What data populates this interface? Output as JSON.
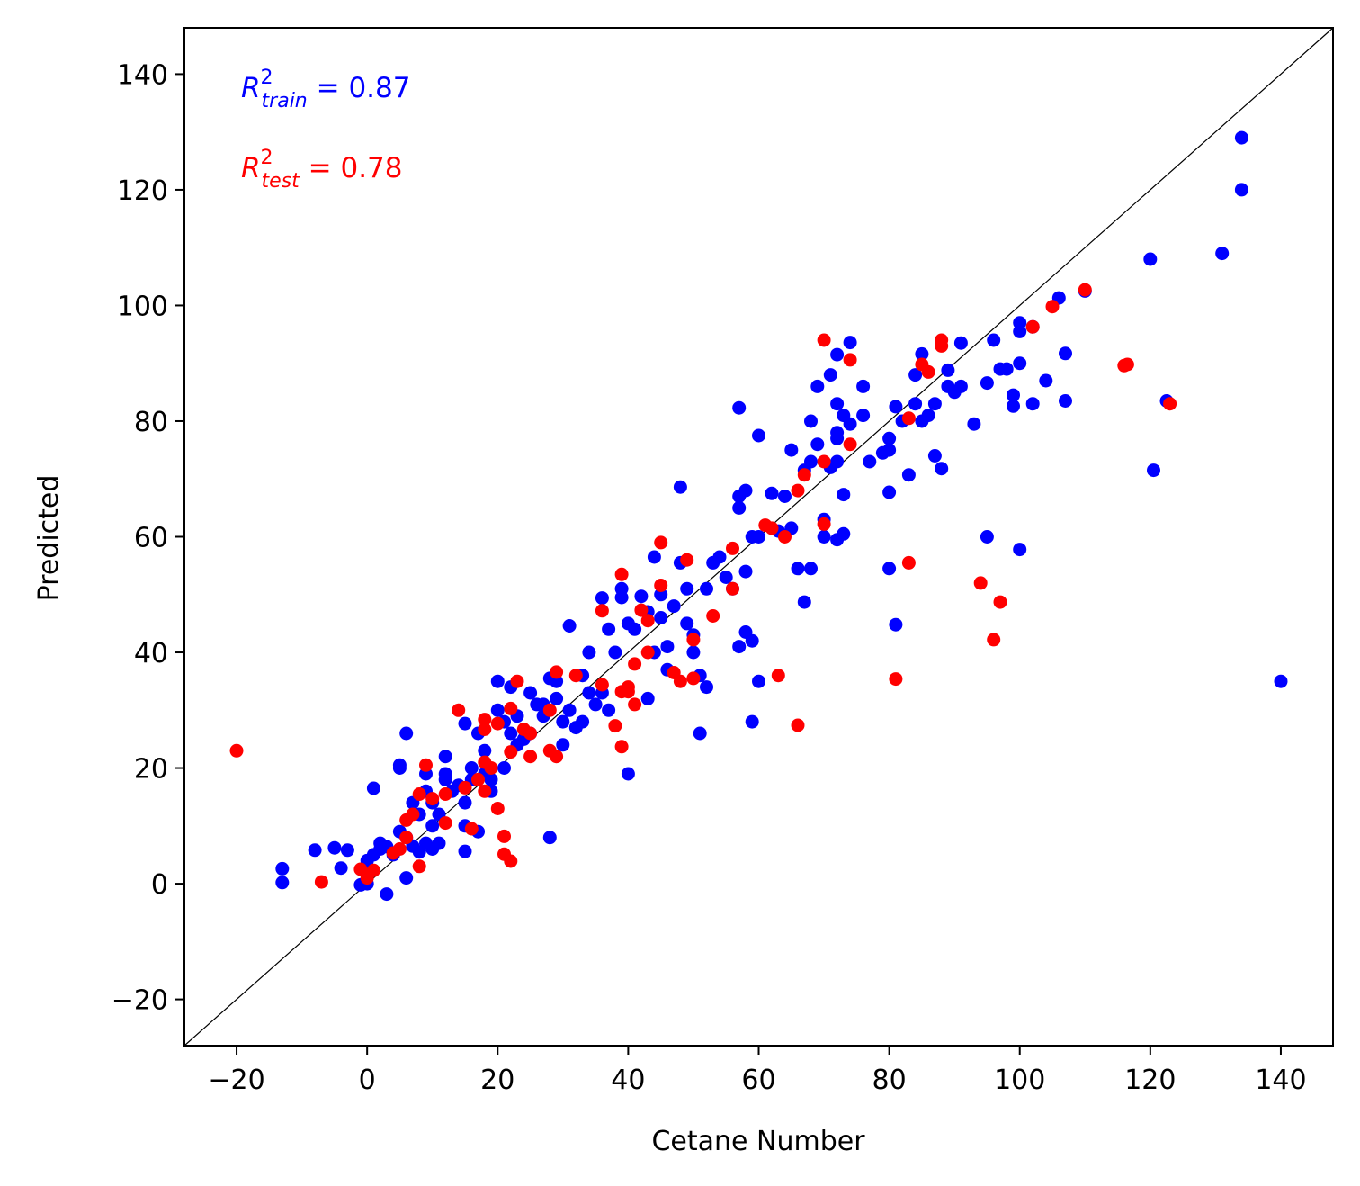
{
  "chart_data": {
    "type": "scatter",
    "title": "",
    "xlabel": "Cetane Number",
    "ylabel": "Predicted",
    "xlim": [
      -28,
      148
    ],
    "ylim": [
      -28,
      148
    ],
    "xticks": [
      -20,
      0,
      20,
      40,
      60,
      80,
      100,
      120,
      140
    ],
    "yticks": [
      -20,
      0,
      20,
      40,
      60,
      80,
      100,
      120,
      140
    ],
    "xtick_labels": [
      "−20",
      "0",
      "20",
      "40",
      "60",
      "80",
      "100",
      "120",
      "140"
    ],
    "ytick_labels": [
      "−20",
      "0",
      "20",
      "40",
      "60",
      "80",
      "100",
      "120",
      "140"
    ],
    "grid": false,
    "reference_line": {
      "type": "identity",
      "color": "#000000"
    },
    "annotations": [
      {
        "id": "train",
        "base": "R",
        "superscript": "2",
        "subscript": "train",
        "text": " = 0.87",
        "color": "#0000ff"
      },
      {
        "id": "test",
        "base": "R",
        "superscript": "2",
        "subscript": "test",
        "text": " = 0.78",
        "color": "#ff0000"
      }
    ],
    "series": [
      {
        "color": "#0000ff",
        "points": [
          [
            -13,
            0.2
          ],
          [
            -13,
            2.6
          ],
          [
            -8,
            5.8
          ],
          [
            -5,
            6.2
          ],
          [
            -4,
            2.7
          ],
          [
            -3,
            5.8
          ],
          [
            -1,
            -0.2
          ],
          [
            0,
            0
          ],
          [
            0,
            4
          ],
          [
            0,
            2
          ],
          [
            1,
            16.5
          ],
          [
            1,
            5
          ],
          [
            2,
            6
          ],
          [
            2,
            7
          ],
          [
            3,
            -1.8
          ],
          [
            3,
            6.4
          ],
          [
            4,
            5
          ],
          [
            5,
            9
          ],
          [
            5,
            20
          ],
          [
            5,
            20.5
          ],
          [
            6,
            26
          ],
          [
            6,
            1
          ],
          [
            6,
            8
          ],
          [
            7,
            14
          ],
          [
            7,
            6.5
          ],
          [
            8,
            12
          ],
          [
            8,
            5.5
          ],
          [
            9,
            19
          ],
          [
            9,
            16
          ],
          [
            9,
            7
          ],
          [
            10,
            10
          ],
          [
            10,
            6
          ],
          [
            10,
            14
          ],
          [
            11,
            7
          ],
          [
            11,
            12
          ],
          [
            12,
            22
          ],
          [
            12,
            18
          ],
          [
            12,
            19
          ],
          [
            13,
            16
          ],
          [
            14,
            17
          ],
          [
            15,
            27.7
          ],
          [
            15,
            14
          ],
          [
            15,
            10
          ],
          [
            15,
            5.6
          ],
          [
            16,
            20
          ],
          [
            16,
            18
          ],
          [
            17,
            26
          ],
          [
            17,
            9
          ],
          [
            18,
            23
          ],
          [
            18,
            19
          ],
          [
            19,
            18
          ],
          [
            19,
            16
          ],
          [
            20,
            35
          ],
          [
            20,
            30
          ],
          [
            21,
            28
          ],
          [
            21,
            20
          ],
          [
            22,
            34
          ],
          [
            22,
            26
          ],
          [
            23,
            29
          ],
          [
            23,
            24
          ],
          [
            24,
            25
          ],
          [
            25,
            33
          ],
          [
            25,
            26
          ],
          [
            26,
            31
          ],
          [
            27,
            31
          ],
          [
            27,
            29
          ],
          [
            28,
            8
          ],
          [
            28,
            35.5
          ],
          [
            29,
            32
          ],
          [
            29,
            35
          ],
          [
            30,
            24
          ],
          [
            30,
            28
          ],
          [
            31,
            44.6
          ],
          [
            31,
            30
          ],
          [
            32,
            27
          ],
          [
            33,
            28
          ],
          [
            33,
            36
          ],
          [
            34,
            40
          ],
          [
            34,
            33
          ],
          [
            35,
            31
          ],
          [
            36,
            49.4
          ],
          [
            36,
            33
          ],
          [
            37,
            30
          ],
          [
            37,
            44
          ],
          [
            38,
            40
          ],
          [
            39,
            49.5
          ],
          [
            39,
            51
          ],
          [
            40,
            45
          ],
          [
            40,
            19
          ],
          [
            41,
            44
          ],
          [
            42,
            49.7
          ],
          [
            43,
            32
          ],
          [
            43,
            47
          ],
          [
            44,
            56.5
          ],
          [
            44,
            40
          ],
          [
            45,
            50
          ],
          [
            45,
            46
          ],
          [
            46,
            41
          ],
          [
            46,
            37
          ],
          [
            47,
            48
          ],
          [
            48,
            68.6
          ],
          [
            48,
            55.5
          ],
          [
            49,
            45
          ],
          [
            49,
            51
          ],
          [
            50,
            43
          ],
          [
            50,
            40
          ],
          [
            51,
            36
          ],
          [
            51,
            26
          ],
          [
            52,
            34
          ],
          [
            52,
            51
          ],
          [
            53,
            55.5
          ],
          [
            54,
            56.5
          ],
          [
            55,
            53
          ],
          [
            56,
            51
          ],
          [
            57,
            82.3
          ],
          [
            57,
            65
          ],
          [
            57,
            67
          ],
          [
            57,
            41
          ],
          [
            58,
            68
          ],
          [
            58,
            54
          ],
          [
            58,
            43.5
          ],
          [
            59,
            60
          ],
          [
            59,
            42
          ],
          [
            59,
            28
          ],
          [
            60,
            77.5
          ],
          [
            60,
            60
          ],
          [
            60,
            35
          ],
          [
            62,
            67.5
          ],
          [
            63,
            61
          ],
          [
            64,
            67
          ],
          [
            65,
            75
          ],
          [
            65,
            61.5
          ],
          [
            66,
            54.5
          ],
          [
            67,
            71.5
          ],
          [
            67,
            48.7
          ],
          [
            68,
            80
          ],
          [
            68,
            73
          ],
          [
            68,
            54.5
          ],
          [
            69,
            76
          ],
          [
            69,
            86
          ],
          [
            70,
            63
          ],
          [
            70,
            60
          ],
          [
            71,
            88
          ],
          [
            71,
            72
          ],
          [
            72,
            91.5
          ],
          [
            72,
            83
          ],
          [
            72,
            78
          ],
          [
            72,
            77
          ],
          [
            72,
            73
          ],
          [
            72,
            59.5
          ],
          [
            73,
            67.3
          ],
          [
            73,
            60.5
          ],
          [
            73,
            81
          ],
          [
            74,
            93.6
          ],
          [
            74,
            79.5
          ],
          [
            76,
            81
          ],
          [
            76,
            86
          ],
          [
            77,
            73
          ],
          [
            79,
            74.5
          ],
          [
            80,
            75
          ],
          [
            80,
            77
          ],
          [
            80,
            67.7
          ],
          [
            80,
            54.5
          ],
          [
            81,
            82.5
          ],
          [
            81,
            44.8
          ],
          [
            82,
            80
          ],
          [
            83,
            70.7
          ],
          [
            84,
            88
          ],
          [
            84,
            83
          ],
          [
            85,
            91.6
          ],
          [
            85,
            80
          ],
          [
            86,
            81
          ],
          [
            87,
            74
          ],
          [
            87,
            83
          ],
          [
            88,
            71.8
          ],
          [
            89,
            88.8
          ],
          [
            89,
            86
          ],
          [
            90,
            85
          ],
          [
            91,
            93.5
          ],
          [
            91,
            86
          ],
          [
            93,
            79.5
          ],
          [
            95,
            86.6
          ],
          [
            95,
            60
          ],
          [
            96,
            94
          ],
          [
            97,
            89
          ],
          [
            98,
            89
          ],
          [
            99,
            84.5
          ],
          [
            99,
            82.6
          ],
          [
            100,
            95.5
          ],
          [
            100,
            97
          ],
          [
            100,
            90
          ],
          [
            100,
            57.8
          ],
          [
            102,
            83
          ],
          [
            102,
            96.3
          ],
          [
            104,
            87
          ],
          [
            106,
            101.3
          ],
          [
            107,
            91.7
          ],
          [
            107,
            83.5
          ],
          [
            110,
            102.5
          ],
          [
            120,
            108
          ],
          [
            120.5,
            71.5
          ],
          [
            122.5,
            83.5
          ],
          [
            131,
            109
          ],
          [
            134,
            129
          ],
          [
            134,
            120
          ],
          [
            140,
            35
          ]
        ]
      },
      {
        "color": "#ff0000",
        "points": [
          [
            -20,
            23
          ],
          [
            -7,
            0.3
          ],
          [
            -1,
            2.5
          ],
          [
            0,
            1
          ],
          [
            1,
            2.3
          ],
          [
            4,
            5.3
          ],
          [
            5,
            6
          ],
          [
            6,
            8
          ],
          [
            6,
            11
          ],
          [
            7,
            12
          ],
          [
            8,
            3
          ],
          [
            8,
            15.5
          ],
          [
            9,
            20.5
          ],
          [
            10,
            14.7
          ],
          [
            12,
            15.5
          ],
          [
            12,
            10.5
          ],
          [
            14,
            30
          ],
          [
            15,
            16.6
          ],
          [
            16,
            9.5
          ],
          [
            17,
            18
          ],
          [
            18,
            28.4
          ],
          [
            18,
            26.7
          ],
          [
            18,
            21
          ],
          [
            18,
            16
          ],
          [
            19,
            20
          ],
          [
            20,
            27.7
          ],
          [
            20,
            13
          ],
          [
            21,
            8.2
          ],
          [
            21,
            5.1
          ],
          [
            22,
            3.9
          ],
          [
            22,
            22.8
          ],
          [
            22,
            30.3
          ],
          [
            23,
            35
          ],
          [
            24,
            26.7
          ],
          [
            25,
            26
          ],
          [
            25,
            22
          ],
          [
            28,
            30
          ],
          [
            28,
            23
          ],
          [
            29,
            36.6
          ],
          [
            29,
            22
          ],
          [
            32,
            36
          ],
          [
            36,
            34.4
          ],
          [
            36,
            47.2
          ],
          [
            38,
            27.3
          ],
          [
            39,
            53.5
          ],
          [
            39,
            23.7
          ],
          [
            39,
            33.2
          ],
          [
            40,
            34
          ],
          [
            40,
            33.2
          ],
          [
            41,
            38
          ],
          [
            41,
            31
          ],
          [
            42,
            47.3
          ],
          [
            43,
            45.5
          ],
          [
            43,
            40
          ],
          [
            45,
            59
          ],
          [
            45,
            51.6
          ],
          [
            47,
            36.5
          ],
          [
            48,
            35
          ],
          [
            49,
            56
          ],
          [
            50,
            35.5
          ],
          [
            50,
            42.2
          ],
          [
            53,
            46.3
          ],
          [
            56,
            51
          ],
          [
            56,
            58
          ],
          [
            61,
            62
          ],
          [
            62,
            61.5
          ],
          [
            63,
            36
          ],
          [
            64,
            60
          ],
          [
            66,
            27.4
          ],
          [
            66,
            68
          ],
          [
            67,
            70.7
          ],
          [
            70,
            94
          ],
          [
            70,
            73
          ],
          [
            70,
            62.2
          ],
          [
            74,
            90.6
          ],
          [
            74,
            76
          ],
          [
            81,
            35.4
          ],
          [
            83,
            80.5
          ],
          [
            83,
            55.5
          ],
          [
            85,
            89.8
          ],
          [
            86,
            88.5
          ],
          [
            88,
            94
          ],
          [
            88,
            93
          ],
          [
            94,
            52
          ],
          [
            96,
            42.2
          ],
          [
            97,
            48.7
          ],
          [
            102,
            96.3
          ],
          [
            105,
            99.8
          ],
          [
            110,
            102.7
          ],
          [
            116,
            89.6
          ],
          [
            116.5,
            89.8
          ],
          [
            123,
            83
          ]
        ]
      }
    ]
  }
}
